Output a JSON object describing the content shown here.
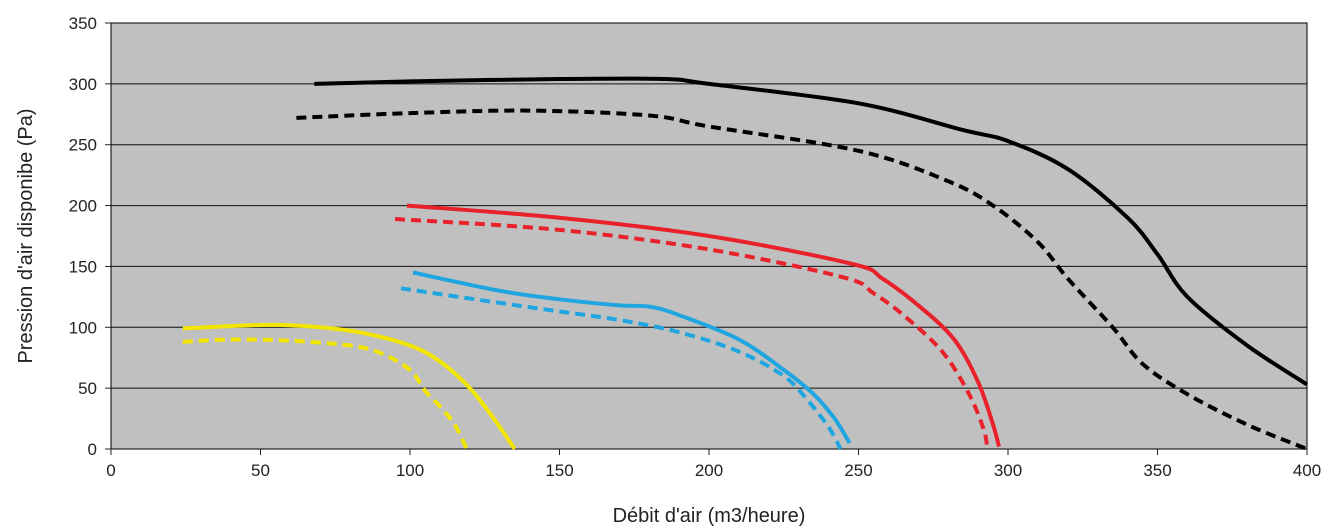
{
  "chart_data": {
    "type": "line",
    "title": "",
    "xlabel": "Débit d'air (m3/heure)",
    "ylabel": "Pression d'air disponibe (Pa)",
    "xlim": [
      0,
      400
    ],
    "ylim": [
      0,
      350
    ],
    "xticks": [
      0,
      50,
      100,
      150,
      200,
      250,
      300,
      350,
      400
    ],
    "yticks": [
      0,
      50,
      100,
      150,
      200,
      250,
      300,
      350
    ],
    "grid": "horizontal",
    "legend": "none",
    "plot_background": "#c0c0c0",
    "series": [
      {
        "color": "#000000",
        "style": "solid",
        "x": [
          68,
          100,
          150,
          185,
          200,
          250,
          285,
          300,
          320,
          340,
          350,
          360,
          380,
          400
        ],
        "y": [
          300,
          302,
          304,
          304,
          300,
          284,
          262,
          253,
          230,
          190,
          160,
          125,
          85,
          53
        ]
      },
      {
        "color": "#000000",
        "style": "dashed",
        "x": [
          62,
          100,
          140,
          180,
          200,
          250,
          280,
          295,
          310,
          320,
          335,
          345,
          360,
          380,
          400
        ],
        "y": [
          272,
          276,
          278,
          274,
          265,
          245,
          220,
          200,
          170,
          140,
          100,
          70,
          45,
          20,
          0
        ]
      },
      {
        "color": "#e8212a",
        "style": "solid",
        "x": [
          99,
          150,
          200,
          248,
          258,
          270,
          282,
          290,
          295,
          297
        ],
        "y": [
          200,
          190,
          175,
          152,
          140,
          118,
          90,
          55,
          20,
          2
        ]
      },
      {
        "color": "#e8212a",
        "style": "dashed",
        "x": [
          95,
          150,
          200,
          245,
          255,
          265,
          278,
          287,
          292,
          293
        ],
        "y": [
          189,
          180,
          164,
          141,
          128,
          110,
          80,
          45,
          15,
          0
        ]
      },
      {
        "color": "#1fa6e0",
        "style": "solid",
        "x": [
          101,
          130,
          150,
          170,
          180,
          190,
          210,
          225,
          235,
          242,
          247
        ],
        "y": [
          145,
          130,
          123,
          118,
          117,
          110,
          90,
          65,
          45,
          25,
          5
        ]
      },
      {
        "color": "#1fa6e0",
        "style": "dashed",
        "x": [
          97,
          130,
          150,
          170,
          190,
          210,
          225,
          233,
          240,
          244
        ],
        "y": [
          132,
          120,
          113,
          106,
          96,
          80,
          60,
          40,
          18,
          0
        ]
      },
      {
        "color": "#f2e600",
        "style": "solid",
        "x": [
          24,
          40,
          55,
          70,
          85,
          100,
          110,
          120,
          128,
          135
        ],
        "y": [
          99,
          101,
          102,
          100,
          95,
          85,
          72,
          50,
          25,
          0
        ]
      },
      {
        "color": "#f2e600",
        "style": "dashed",
        "x": [
          24,
          40,
          60,
          80,
          90,
          100,
          105,
          110,
          115,
          119
        ],
        "y": [
          88,
          90,
          89,
          85,
          79,
          65,
          48,
          35,
          20,
          0
        ]
      }
    ]
  }
}
